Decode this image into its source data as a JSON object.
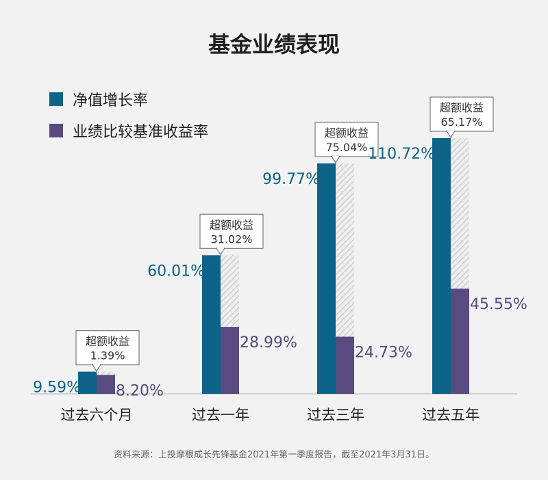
{
  "chart_data": {
    "type": "bar",
    "title": "基金业绩表现",
    "categories": [
      "过去六个月",
      "过去一年",
      "过去三年",
      "过去五年"
    ],
    "series": [
      {
        "name": "净值增长率",
        "values": [
          9.59,
          60.01,
          99.77,
          110.72
        ],
        "labels": [
          "9.59%",
          "60.01%",
          "99.77%",
          "110.72%"
        ]
      },
      {
        "name": "业绩比较基准收益率",
        "values": [
          8.2,
          28.99,
          24.73,
          45.55
        ],
        "labels": [
          "8.20%",
          "28.99%",
          "24.73%",
          "45.55%"
        ]
      }
    ],
    "excess": {
      "label": "超额收益",
      "values": [
        1.39,
        31.02,
        75.04,
        65.17
      ],
      "labels": [
        "1.39%",
        "31.02%",
        "75.04%",
        "65.17%"
      ]
    },
    "ylim": [
      0,
      110.72
    ],
    "grid": false,
    "legend": "top-left"
  },
  "colors": {
    "fund": "#0e6389",
    "benchmark": "#574b80",
    "hatch": "#c9c9c9",
    "callout_border": "#7a7a7a"
  },
  "footer": {
    "source": "资料来源：上投摩根成长先锋基金2021年第一季度报告，截至2021年3月31日。"
  }
}
